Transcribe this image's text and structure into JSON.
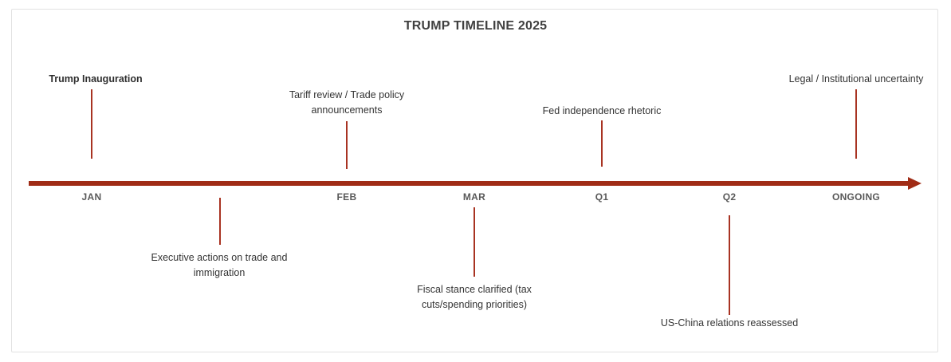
{
  "title": "TRUMP TIMELINE 2025",
  "milestones": [
    {
      "text": "JAN"
    },
    {
      "text": "FEB"
    },
    {
      "text": "MAR"
    },
    {
      "text": "Q1"
    },
    {
      "text": "Q2"
    },
    {
      "text": "ONGOING"
    }
  ],
  "events": [
    {
      "label": "Trump Inauguration",
      "side": "above",
      "anchor": "JAN",
      "emphasis": true
    },
    {
      "label": "Tariff review / Trade policy announcements",
      "side": "above",
      "anchor": "FEB",
      "emphasis": false
    },
    {
      "label": "Fed independence rhetoric",
      "side": "above",
      "anchor": "Q1",
      "emphasis": false
    },
    {
      "label": "Legal / Institutional uncertainty",
      "side": "above",
      "anchor": "ONGOING",
      "emphasis": false
    },
    {
      "label": "Executive actions on trade and immigration",
      "side": "below",
      "anchor": "between JAN and FEB",
      "emphasis": false
    },
    {
      "label": "Fiscal stance clarified (tax cuts/spending priorities)",
      "side": "below",
      "anchor": "MAR",
      "emphasis": false
    },
    {
      "label": "US-China relations reassessed",
      "side": "below",
      "anchor": "Q2",
      "emphasis": false
    }
  ],
  "colors": {
    "axis": "#a02c16",
    "connector": "#a83322",
    "title_text": "#404040",
    "milestone_text": "#595959",
    "event_text": "#333333",
    "frame_border": "#e2e2e2",
    "background": "#ffffff"
  }
}
